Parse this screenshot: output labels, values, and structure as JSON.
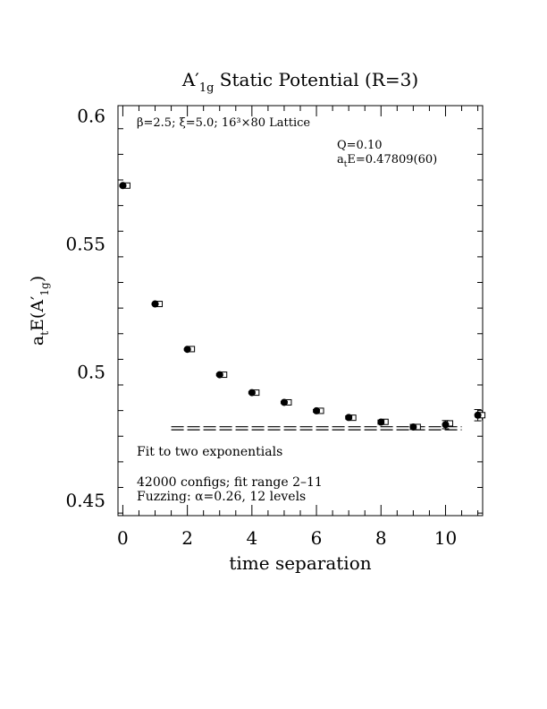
{
  "chart_data": {
    "type": "scatter",
    "title_main": "A",
    "title_prime": "′",
    "title_sub": "1g",
    "title_rest": " Static Potential (R=3)",
    "xlabel": "time separation",
    "ylabel_main": "a",
    "ylabel_sub1": "t",
    "ylabel_mid": "E(A",
    "ylabel_prime": "′",
    "ylabel_sub2": "1g",
    "ylabel_close": ")",
    "xlim": [
      -0.15,
      11.15
    ],
    "ylim": [
      0.444,
      0.604
    ],
    "x_ticks": [
      0,
      2,
      4,
      6,
      8,
      10
    ],
    "x_tick_labels": [
      "0",
      "2",
      "4",
      "6",
      "8",
      "10"
    ],
    "y_ticks": [
      0.45,
      0.5,
      0.55,
      0.6
    ],
    "y_tick_labels": [
      "0.45",
      "0.5",
      "0.55",
      "0.6"
    ],
    "series_filled": {
      "x": [
        0,
        1,
        2,
        3,
        4,
        5,
        6,
        7,
        8,
        9,
        10,
        11
      ],
      "y": [
        0.5728,
        0.5266,
        0.5089,
        0.499,
        0.492,
        0.4882,
        0.4849,
        0.4823,
        0.4805,
        0.4786,
        0.4795,
        0.4832
      ],
      "err": [
        0.0003,
        0.0003,
        0.0003,
        0.0004,
        0.0004,
        0.0004,
        0.0005,
        0.0006,
        0.0008,
        0.001,
        0.0016,
        0.0022
      ]
    },
    "series_open": {
      "x": [
        0,
        1,
        2,
        3,
        4,
        5,
        6,
        7,
        8,
        9,
        10,
        11
      ],
      "y": [
        0.5728,
        0.5266,
        0.509,
        0.499,
        0.492,
        0.4882,
        0.4849,
        0.4822,
        0.4806,
        0.4786,
        0.48,
        0.4832
      ],
      "err": [
        0.0002,
        0.0002,
        0.0003,
        0.0003,
        0.0003,
        0.0004,
        0.0004,
        0.0005,
        0.0006,
        0.0008,
        0.001,
        0.002
      ]
    },
    "fit": {
      "value": 0.47809,
      "error": 0.0006,
      "x_range": [
        1.5,
        10.5
      ]
    },
    "annotations": {
      "lattice_line": "β=2.5; ξ=5.0; 16³×80 Lattice",
      "q_line": "Q=0.10",
      "ae_main": "a",
      "ae_sub": "t",
      "ae_rest": "E=0.47809(60)",
      "fit_label": "Fit to two exponentials",
      "configs_line": "42000 configs; fit range 2–11",
      "fuzzing_line": "Fuzzing: α=0.26, 12 levels"
    }
  }
}
